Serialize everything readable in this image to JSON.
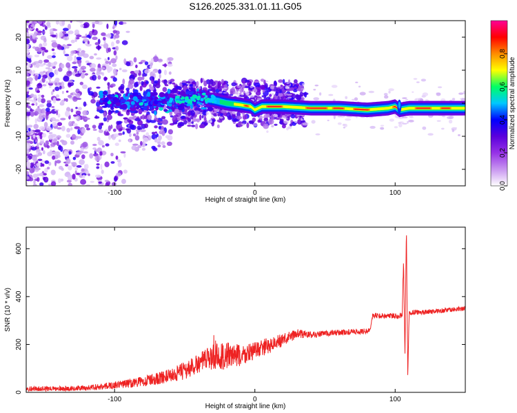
{
  "title": "S126.2025.331.01.11.G05",
  "chart_data": [
    {
      "type": "heatmap",
      "xlabel": "Height of straight line (km)",
      "ylabel": "Frequency (Hz)",
      "xlim": [
        -163,
        150
      ],
      "ylim": [
        -25,
        25
      ],
      "xticks": [
        -100,
        0,
        100
      ],
      "yticks": [
        -20,
        -10,
        0,
        10,
        20
      ],
      "colorbar": {
        "label": "Normalized spectral amplitude",
        "range": [
          0,
          1
        ],
        "ticks": [
          0.0,
          0.2,
          0.4,
          0.6,
          0.8
        ],
        "colors": [
          "#ffffff",
          "#c896f0",
          "#9632e6",
          "#5a00dc",
          "#0000ff",
          "#00c8ff",
          "#00ff64",
          "#ffff00",
          "#ff8c00",
          "#ff0000",
          "#ff0096"
        ]
      },
      "ridge": [
        {
          "x": -60,
          "y": 0.5
        },
        {
          "x": -40,
          "y": 1.5
        },
        {
          "x": -30,
          "y": 1.0
        },
        {
          "x": -20,
          "y": 0.0
        },
        {
          "x": -10,
          "y": -0.5
        },
        {
          "x": -3,
          "y": -1.0
        },
        {
          "x": 0,
          "y": -2.0
        },
        {
          "x": 5,
          "y": -1.0
        },
        {
          "x": 20,
          "y": -1.0
        },
        {
          "x": 40,
          "y": -1.5
        },
        {
          "x": 60,
          "y": -1.5
        },
        {
          "x": 80,
          "y": -2.0
        },
        {
          "x": 95,
          "y": -1.5
        },
        {
          "x": 100,
          "y": -1.0
        },
        {
          "x": 103,
          "y": -2.0
        },
        {
          "x": 110,
          "y": -1.5
        },
        {
          "x": 130,
          "y": -1.5
        },
        {
          "x": 150,
          "y": -1.5
        }
      ]
    },
    {
      "type": "line",
      "xlabel": "Height of straight line (km)",
      "ylabel": "SNR (10 * v/v)",
      "xlim": [
        -163,
        150
      ],
      "ylim": [
        0,
        690
      ],
      "xticks": [
        -100,
        0,
        100
      ],
      "yticks": [
        0,
        200,
        400,
        600
      ],
      "color": "#ee2222",
      "series": [
        {
          "name": "SNR",
          "x": [
            -163,
            -140,
            -120,
            -100,
            -80,
            -60,
            -50,
            -40,
            -30,
            -20,
            -10,
            0,
            10,
            20,
            30,
            40,
            60,
            80,
            82,
            84,
            100,
            105,
            106,
            107,
            108,
            109,
            110,
            112,
            120,
            140,
            150
          ],
          "y": [
            15,
            15,
            18,
            30,
            45,
            70,
            90,
            120,
            150,
            155,
            150,
            175,
            195,
            220,
            245,
            240,
            250,
            255,
            265,
            320,
            320,
            322,
            550,
            150,
            680,
            60,
            330,
            335,
            335,
            345,
            350
          ],
          "amp": [
            10,
            10,
            12,
            15,
            22,
            28,
            40,
            40,
            55,
            60,
            50,
            35,
            35,
            25,
            20,
            15,
            12,
            12,
            10,
            12,
            12,
            15,
            0,
            0,
            0,
            0,
            12,
            12,
            10,
            10,
            10
          ]
        }
      ]
    }
  ]
}
